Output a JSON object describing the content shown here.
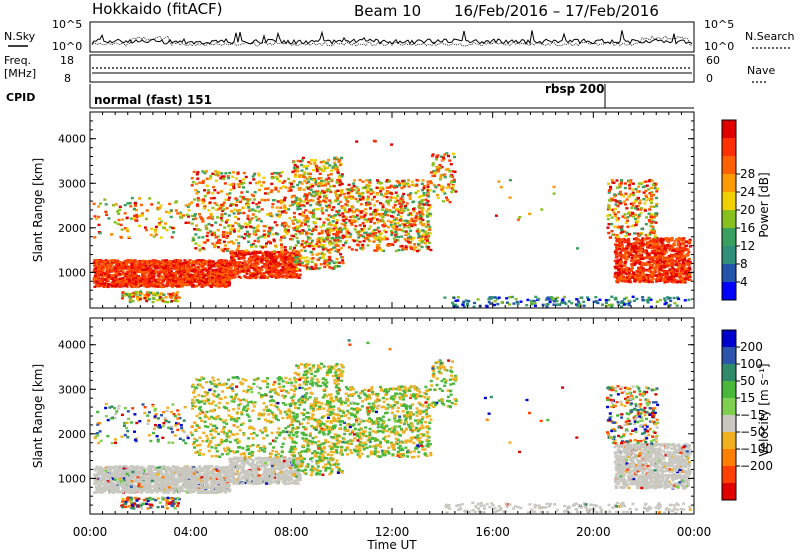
{
  "header": {
    "station": "Hokkaido (fitACF)",
    "beam": "Beam 10",
    "date_range": "16/Feb/2016 – 17/Feb/2016"
  },
  "strips": {
    "nsky_label": "N.Sky",
    "nsky_ticks": [
      "10^5",
      "10^0"
    ],
    "nsearch_label": "N.Search",
    "freq_label": "Freq.",
    "freq_unit": "[MHz]",
    "freq_ticks": [
      "18",
      "8"
    ],
    "nave_ticks": [
      "60",
      "0"
    ],
    "nave_label": "Nave",
    "cpid_label": "CPID",
    "cpid_mode_1": "normal (fast) 151",
    "cpid_mode_2": "rbsp 200"
  },
  "colors": {
    "power": [
      "#0000ff",
      "#2255aa",
      "#2f8f7a",
      "#3aa060",
      "#88c020",
      "#f0d000",
      "#ff9a00",
      "#ff6000",
      "#ff3000",
      "#e00000"
    ],
    "velocity": [
      "#0000cc",
      "#2a55aa",
      "#2f8a6a",
      "#49b83a",
      "#80d050",
      "#c8c8c0",
      "#f0b020",
      "#ff8000",
      "#ff4000",
      "#e00000"
    ]
  },
  "chart_data": [
    {
      "type": "heatmap",
      "name": "power",
      "ylabel": "Slant Range [km]",
      "yticks": [
        "1000",
        "2000",
        "3000",
        "4000"
      ],
      "xticks": [
        "00:00",
        "04:00",
        "08:00",
        "12:00",
        "16:00",
        "20:00",
        "00:00"
      ],
      "colorbar_label": "Power [dB]",
      "colorbar_ticks": [
        "4",
        "8",
        "12",
        "16",
        "20",
        "24",
        "28"
      ],
      "ylim": [
        200,
        4600
      ]
    },
    {
      "type": "heatmap",
      "name": "velocity",
      "ylabel": "Slant Range [km]",
      "yticks": [
        "1000",
        "2000",
        "3000",
        "4000"
      ],
      "xticks": [
        "00:00",
        "04:00",
        "08:00",
        "12:00",
        "16:00",
        "20:00",
        "00:00"
      ],
      "xlabel": "Time UT",
      "colorbar_label": "Velocity [m s⁻¹]",
      "colorbar_ticks": [
        "200",
        "100",
        "50",
        "15",
        "−15",
        "−50",
        "−100",
        "−200"
      ],
      "ylim": [
        200,
        4600
      ]
    }
  ]
}
